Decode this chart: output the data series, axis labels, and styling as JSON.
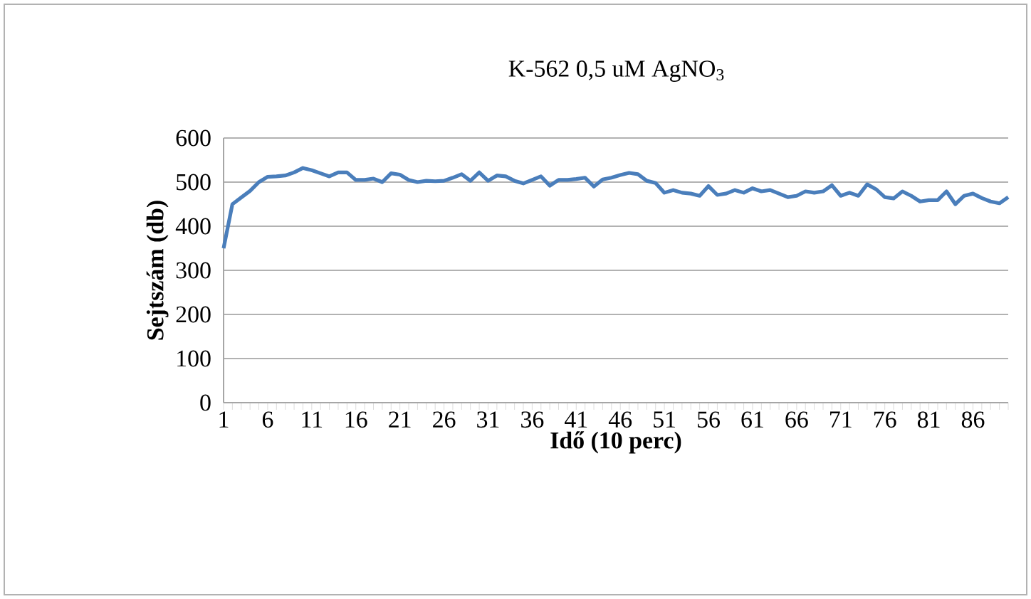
{
  "chart_data": {
    "type": "line",
    "title": "K-562  0,5 uM AgNO$_{3}$",
    "xlabel": "Idő (10 perc)",
    "ylabel": "Sejtszám (db)",
    "categories": [
      "1",
      null,
      null,
      null,
      null,
      "6",
      null,
      null,
      null,
      null,
      "11",
      null,
      null,
      null,
      null,
      "16",
      null,
      null,
      null,
      null,
      "21",
      null,
      null,
      null,
      null,
      "26",
      null,
      null,
      null,
      null,
      "31",
      null,
      null,
      null,
      null,
      "36",
      null,
      null,
      null,
      null,
      "41",
      null,
      null,
      null,
      null,
      "46",
      null,
      null,
      null,
      null,
      "51",
      null,
      null,
      null,
      null,
      "56",
      null,
      null,
      null,
      null,
      "61",
      null,
      null,
      null,
      null,
      "66",
      null,
      null,
      null,
      null,
      "71",
      null,
      null,
      null,
      null,
      "76",
      null,
      null,
      null,
      null,
      "81",
      null,
      null,
      null,
      null,
      "86",
      null,
      null,
      null,
      null
    ],
    "series": [
      {
        "color": "#4a7ebb",
        "values": [
          350,
          450,
          465,
          480,
          500,
          512,
          513,
          515,
          522,
          532,
          527,
          520,
          513,
          522,
          522,
          505,
          505,
          508,
          500,
          520,
          517,
          505,
          500,
          503,
          502,
          503,
          510,
          518,
          503,
          522,
          503,
          515,
          513,
          503,
          497,
          505,
          513,
          492,
          505,
          505,
          507,
          510,
          490,
          506,
          510,
          516,
          521,
          518,
          503,
          498,
          476,
          482,
          476,
          474,
          469,
          491,
          471,
          474,
          482,
          476,
          486,
          479,
          482,
          474,
          466,
          469,
          479,
          476,
          479,
          493,
          469,
          476,
          469,
          495,
          484,
          466,
          463,
          479,
          469,
          456,
          459,
          459,
          479,
          450,
          469,
          474,
          464,
          456,
          452,
          466
        ]
      }
    ],
    "ylim": [
      0,
      600
    ],
    "yticks": [
      0,
      100,
      200,
      300,
      400,
      500,
      600
    ],
    "grid": "y",
    "line_style": "solid",
    "marker": "none"
  }
}
